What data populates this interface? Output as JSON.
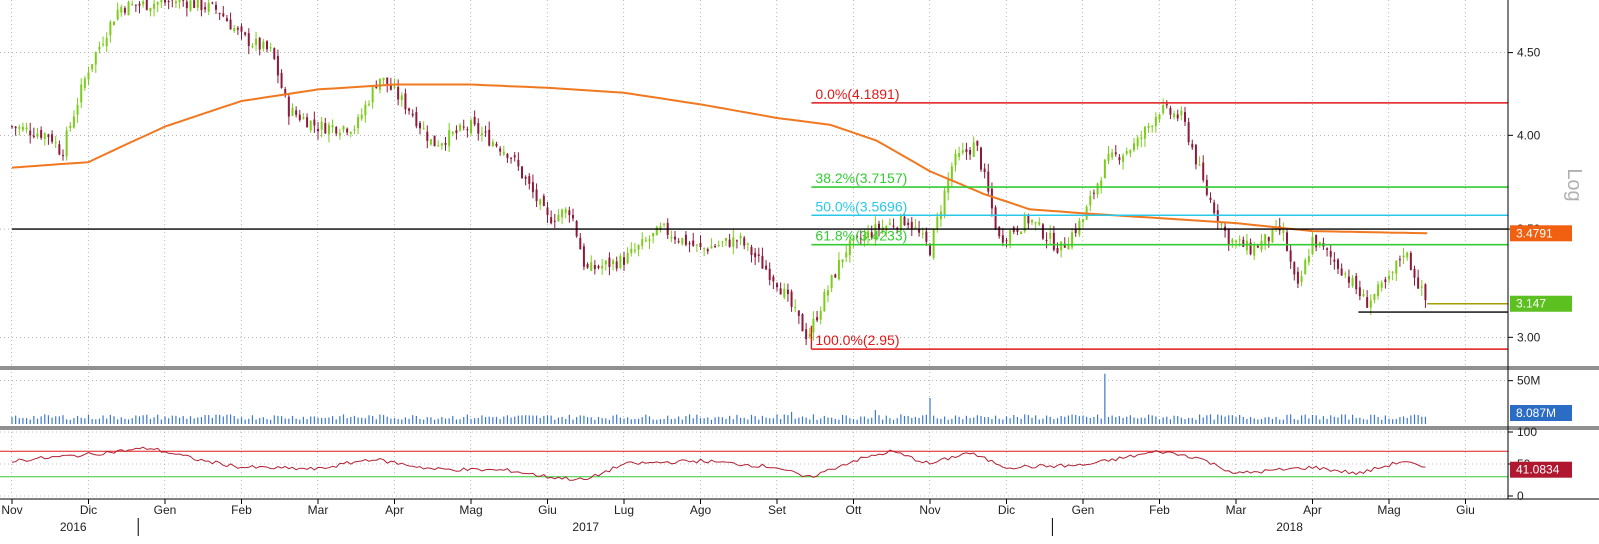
{
  "chart_data": [
    {
      "type": "candlestick",
      "panel": "price",
      "scale": "log",
      "scale_label": "Log",
      "ylim": [
        2.88,
        4.85
      ],
      "y_ticks": [
        {
          "value": 3.0,
          "label": "3.00"
        },
        {
          "value": 3.5,
          "label": "3.50"
        },
        {
          "value": 4.0,
          "label": "4.00"
        },
        {
          "value": 4.5,
          "label": "4.50"
        }
      ],
      "price_path": [
        {
          "month": 0.0,
          "price": 4.05
        },
        {
          "month": 0.5,
          "price": 4.0
        },
        {
          "month": 0.65,
          "price": 3.9
        },
        {
          "month": 1.0,
          "price": 4.4
        },
        {
          "month": 1.4,
          "price": 4.8
        },
        {
          "month": 2.2,
          "price": 4.85
        },
        {
          "month": 2.7,
          "price": 4.78
        },
        {
          "month": 3.0,
          "price": 4.6
        },
        {
          "month": 3.4,
          "price": 4.5
        },
        {
          "month": 3.6,
          "price": 4.15
        },
        {
          "month": 4.0,
          "price": 4.05
        },
        {
          "month": 4.5,
          "price": 4.05
        },
        {
          "month": 4.8,
          "price": 4.35
        },
        {
          "month": 5.2,
          "price": 4.15
        },
        {
          "month": 5.5,
          "price": 3.95
        },
        {
          "month": 6.0,
          "price": 4.05
        },
        {
          "month": 6.5,
          "price": 3.9
        },
        {
          "month": 7.0,
          "price": 3.55
        },
        {
          "month": 7.3,
          "price": 3.6
        },
        {
          "month": 7.5,
          "price": 3.3
        },
        {
          "month": 8.0,
          "price": 3.35
        },
        {
          "month": 8.5,
          "price": 3.5
        },
        {
          "month": 9.0,
          "price": 3.4
        },
        {
          "month": 9.5,
          "price": 3.45
        },
        {
          "month": 10.0,
          "price": 3.25
        },
        {
          "month": 10.4,
          "price": 3.0
        },
        {
          "month": 10.9,
          "price": 3.4
        },
        {
          "month": 11.3,
          "price": 3.5
        },
        {
          "month": 11.7,
          "price": 3.55
        },
        {
          "month": 12.0,
          "price": 3.4
        },
        {
          "month": 12.3,
          "price": 3.85
        },
        {
          "month": 12.6,
          "price": 3.95
        },
        {
          "month": 12.9,
          "price": 3.45
        },
        {
          "month": 13.3,
          "price": 3.55
        },
        {
          "month": 13.7,
          "price": 3.4
        },
        {
          "month": 14.0,
          "price": 3.55
        },
        {
          "month": 14.3,
          "price": 3.85
        },
        {
          "month": 14.7,
          "price": 3.95
        },
        {
          "month": 15.0,
          "price": 4.15
        },
        {
          "month": 15.3,
          "price": 4.1
        },
        {
          "month": 15.6,
          "price": 3.7
        },
        {
          "month": 15.9,
          "price": 3.45
        },
        {
          "month": 16.2,
          "price": 3.4
        },
        {
          "month": 16.6,
          "price": 3.5
        },
        {
          "month": 16.8,
          "price": 3.2
        },
        {
          "month": 17.0,
          "price": 3.45
        },
        {
          "month": 17.4,
          "price": 3.3
        },
        {
          "month": 17.7,
          "price": 3.15
        },
        {
          "month": 18.0,
          "price": 3.25
        },
        {
          "month": 18.2,
          "price": 3.4
        },
        {
          "month": 18.45,
          "price": 3.18
        },
        {
          "month": 18.5,
          "price": 3.147
        }
      ],
      "moving_average": [
        {
          "month": 0.0,
          "value": 3.82
        },
        {
          "month": 1.0,
          "value": 3.85
        },
        {
          "month": 2.0,
          "value": 4.05
        },
        {
          "month": 3.0,
          "value": 4.2
        },
        {
          "month": 4.0,
          "value": 4.27
        },
        {
          "month": 5.0,
          "value": 4.3
        },
        {
          "month": 6.0,
          "value": 4.3
        },
        {
          "month": 7.0,
          "value": 4.28
        },
        {
          "month": 8.0,
          "value": 4.25
        },
        {
          "month": 9.0,
          "value": 4.18
        },
        {
          "month": 10.0,
          "value": 4.1
        },
        {
          "month": 10.7,
          "value": 4.06
        },
        {
          "month": 11.3,
          "value": 3.97
        },
        {
          "month": 12.0,
          "value": 3.8
        },
        {
          "month": 12.7,
          "value": 3.68
        },
        {
          "month": 13.3,
          "value": 3.6
        },
        {
          "month": 14.0,
          "value": 3.58
        },
        {
          "month": 15.0,
          "value": 3.555
        },
        {
          "month": 16.0,
          "value": 3.53
        },
        {
          "month": 17.0,
          "value": 3.49
        },
        {
          "month": 18.5,
          "value": 3.4791
        }
      ],
      "fibonacci": {
        "levels": [
          {
            "label": "0.0%(4.1891)",
            "value": 4.1891,
            "color": "#e01818",
            "text_color": "#e01818"
          },
          {
            "label": "38.2%(3.7157)",
            "value": 3.7157,
            "color": "#33cc33",
            "text_color": "#33cc33"
          },
          {
            "label": "50.0%(3.5696)",
            "value": 3.5696,
            "color": "#29c8e8",
            "text_color": "#29c8e8"
          },
          {
            "label": "61.8%(3.4233)",
            "value": 3.4233,
            "color": "#33cc33",
            "text_color": "#33cc33"
          },
          {
            "label": "100.0%(2.95)",
            "value": 2.95,
            "color": "#e01818",
            "text_color": "#e01818"
          }
        ],
        "start_month": 10.45
      },
      "horizontal_lines": [
        {
          "value": 3.5,
          "color": "#000000",
          "from_month": 0.0
        },
        {
          "value": 3.11,
          "color": "#000000",
          "from_month": 17.6
        },
        {
          "value": 3.147,
          "color": "#a0a000",
          "from_month": 18.5
        }
      ],
      "last_value_tags": [
        {
          "label": "3.4791",
          "value": 3.4791,
          "color": "#f06010"
        },
        {
          "label": "3.147",
          "value": 3.147,
          "color": "#5cc020"
        }
      ]
    },
    {
      "type": "bar",
      "panel": "volume",
      "ylim": [
        0,
        60
      ],
      "y_ticks": [
        {
          "value": 50,
          "label": "50M"
        }
      ],
      "typical_value_millions": 8,
      "spikes_millions": [
        {
          "month": 12.0,
          "value": 30
        },
        {
          "month": 14.3,
          "value": 58
        },
        {
          "month": 10.2,
          "value": 14
        },
        {
          "month": 11.3,
          "value": 16
        }
      ],
      "last_value_tags": [
        {
          "label": "8.087M",
          "value": 8.087,
          "color": "#2b6cc4"
        }
      ]
    },
    {
      "type": "line",
      "panel": "rsi",
      "ylim": [
        0,
        100
      ],
      "y_ticks": [
        {
          "value": 100,
          "label": "100"
        },
        {
          "value": 50,
          "label": "50"
        },
        {
          "value": 0,
          "label": "0"
        }
      ],
      "upper_band": 70,
      "lower_band": 30,
      "rsi_path": [
        {
          "month": 0.0,
          "value": 55
        },
        {
          "month": 1.0,
          "value": 65
        },
        {
          "month": 1.8,
          "value": 75
        },
        {
          "month": 2.5,
          "value": 55
        },
        {
          "month": 3.0,
          "value": 45
        },
        {
          "month": 4.0,
          "value": 42
        },
        {
          "month": 4.7,
          "value": 58
        },
        {
          "month": 5.5,
          "value": 42
        },
        {
          "month": 6.5,
          "value": 40
        },
        {
          "month": 7.0,
          "value": 30
        },
        {
          "month": 7.5,
          "value": 25
        },
        {
          "month": 8.0,
          "value": 50
        },
        {
          "month": 9.0,
          "value": 55
        },
        {
          "month": 10.0,
          "value": 45
        },
        {
          "month": 10.4,
          "value": 28
        },
        {
          "month": 11.0,
          "value": 55
        },
        {
          "month": 11.5,
          "value": 70
        },
        {
          "month": 12.0,
          "value": 50
        },
        {
          "month": 12.5,
          "value": 68
        },
        {
          "month": 13.0,
          "value": 45
        },
        {
          "month": 14.0,
          "value": 48
        },
        {
          "month": 15.0,
          "value": 70
        },
        {
          "month": 15.5,
          "value": 60
        },
        {
          "month": 16.0,
          "value": 35
        },
        {
          "month": 17.0,
          "value": 45
        },
        {
          "month": 17.6,
          "value": 35
        },
        {
          "month": 18.2,
          "value": 55
        },
        {
          "month": 18.5,
          "value": 41.0834
        }
      ],
      "last_value_tags": [
        {
          "label": "41.0834",
          "value": 41.0834,
          "color": "#b01830"
        }
      ]
    }
  ],
  "x_axis": {
    "months": [
      "Nov",
      "Dic",
      "Gen",
      "Feb",
      "Mar",
      "Apr",
      "Mag",
      "Giu",
      "Lug",
      "Ago",
      "Set",
      "Ott",
      "Nov",
      "Dic",
      "Gen",
      "Feb",
      "Mar",
      "Apr",
      "Mag",
      "Giu"
    ],
    "years": [
      {
        "label": "2016",
        "month": 0.8
      },
      {
        "label": "2017",
        "month": 7.5
      },
      {
        "label": "2018",
        "month": 16.7
      }
    ],
    "year_breaks": [
      1.65,
      13.6
    ]
  },
  "colors": {
    "candle_up": "#7ccc1c",
    "candle_down": "#8c1a3a",
    "moving_average": "#f07820",
    "rsi_line": "#b02030",
    "rsi_upper": "#e01818",
    "rsi_lower": "#33cc33",
    "volume_bar": "#3b78d0",
    "grid": "#888888",
    "separator": "#909090",
    "log_label": "#b0b0b0"
  }
}
